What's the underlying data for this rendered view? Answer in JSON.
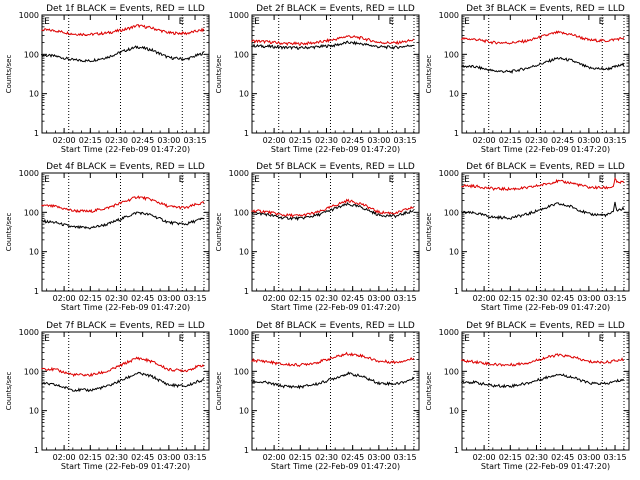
{
  "chart_data": [
    {
      "type": "line",
      "title": "Det 1f BLACK = Events, RED = LLD",
      "xlabel": "Start Time (22-Feb-09 01:47:20)",
      "ylabel": "Counts/sec",
      "yscale": "log",
      "ylim": [
        1,
        1000
      ],
      "xlim": [
        "01:47:20",
        "03:23:00"
      ],
      "x_ticks": [
        "02:00",
        "02:15",
        "02:30",
        "02:45",
        "03:00",
        "03:15"
      ],
      "y_ticks": [
        "1",
        "10",
        "100",
        "1000"
      ],
      "markers": [
        "E",
        "E"
      ],
      "series": [
        {
          "color": "#000000",
          "x": [
            "01:47",
            "01:55",
            "02:05",
            "02:15",
            "02:25",
            "02:35",
            "02:42",
            "02:50",
            "03:00",
            "03:10",
            "03:15",
            "03:20"
          ],
          "y": [
            95,
            90,
            72,
            68,
            85,
            125,
            155,
            130,
            82,
            75,
            90,
            108
          ]
        },
        {
          "color": "#dd0000",
          "x": [
            "01:47",
            "01:55",
            "02:05",
            "02:15",
            "02:25",
            "02:35",
            "02:42",
            "02:50",
            "03:00",
            "03:10",
            "03:15",
            "03:20"
          ],
          "y": [
            420,
            400,
            330,
            320,
            350,
            430,
            540,
            470,
            350,
            340,
            380,
            420
          ]
        }
      ]
    },
    {
      "type": "line",
      "title": "Det 2f BLACK = Events, RED = LLD",
      "xlabel": "Start Time (22-Feb-09 01:47:20)",
      "ylabel": "Counts/sec",
      "yscale": "log",
      "ylim": [
        1,
        1000
      ],
      "xlim": [
        "01:47:20",
        "03:23:00"
      ],
      "x_ticks": [
        "02:00",
        "02:15",
        "02:30",
        "02:45",
        "03:00",
        "03:15"
      ],
      "y_ticks": [
        "1",
        "10",
        "100",
        "1000"
      ],
      "markers": [
        "E",
        "E"
      ],
      "series": [
        {
          "color": "#000000",
          "x": [
            "01:47",
            "01:55",
            "02:05",
            "02:15",
            "02:25",
            "02:35",
            "02:42",
            "02:50",
            "03:00",
            "03:10",
            "03:15",
            "03:20"
          ],
          "y": [
            165,
            160,
            150,
            145,
            155,
            170,
            200,
            185,
            155,
            150,
            160,
            175
          ]
        },
        {
          "color": "#dd0000",
          "x": [
            "01:47",
            "01:55",
            "02:05",
            "02:15",
            "02:25",
            "02:35",
            "02:42",
            "02:50",
            "03:00",
            "03:10",
            "03:15",
            "03:20"
          ],
          "y": [
            220,
            210,
            190,
            185,
            200,
            240,
            290,
            260,
            200,
            195,
            210,
            230
          ]
        }
      ]
    },
    {
      "type": "line",
      "title": "Det 3f BLACK = Events, RED = LLD",
      "xlabel": "Start Time (22-Feb-09 01:47:20)",
      "ylabel": "Counts/sec",
      "yscale": "log",
      "ylim": [
        1,
        1000
      ],
      "xlim": [
        "01:47:20",
        "03:23:00"
      ],
      "x_ticks": [
        "02:00",
        "02:15",
        "02:30",
        "02:45",
        "03:00",
        "03:15"
      ],
      "y_ticks": [
        "1",
        "10",
        "100",
        "1000"
      ],
      "markers": [
        "E",
        "E"
      ],
      "series": [
        {
          "color": "#000000",
          "x": [
            "01:47",
            "01:55",
            "02:05",
            "02:15",
            "02:25",
            "02:35",
            "02:42",
            "02:50",
            "03:00",
            "03:10",
            "03:15",
            "03:20"
          ],
          "y": [
            50,
            48,
            38,
            36,
            45,
            62,
            80,
            70,
            45,
            42,
            48,
            55
          ]
        },
        {
          "color": "#dd0000",
          "x": [
            "01:47",
            "01:55",
            "02:05",
            "02:15",
            "02:25",
            "02:35",
            "02:42",
            "02:50",
            "03:00",
            "03:10",
            "03:15",
            "03:20"
          ],
          "y": [
            250,
            240,
            200,
            195,
            220,
            300,
            360,
            320,
            230,
            220,
            240,
            260
          ]
        }
      ]
    },
    {
      "type": "line",
      "title": "Det 4f BLACK = Events, RED = LLD",
      "xlabel": "Start Time (22-Feb-09 01:47:20)",
      "ylabel": "Counts/sec",
      "yscale": "log",
      "ylim": [
        1,
        1000
      ],
      "xlim": [
        "01:47:20",
        "03:23:00"
      ],
      "x_ticks": [
        "02:00",
        "02:15",
        "02:30",
        "02:45",
        "03:00",
        "03:15"
      ],
      "y_ticks": [
        "1",
        "10",
        "100",
        "1000"
      ],
      "markers": [
        "E",
        "E"
      ],
      "series": [
        {
          "color": "#000000",
          "x": [
            "01:47",
            "01:55",
            "02:05",
            "02:15",
            "02:25",
            "02:35",
            "02:42",
            "02:50",
            "03:00",
            "03:10",
            "03:15",
            "03:20"
          ],
          "y": [
            60,
            55,
            42,
            40,
            50,
            75,
            100,
            85,
            55,
            50,
            60,
            70
          ]
        },
        {
          "color": "#dd0000",
          "x": [
            "01:47",
            "01:55",
            "02:05",
            "02:15",
            "02:25",
            "02:35",
            "02:42",
            "02:50",
            "03:00",
            "03:10",
            "03:15",
            "03:20"
          ],
          "y": [
            150,
            140,
            110,
            105,
            130,
            190,
            250,
            210,
            140,
            130,
            155,
            175
          ]
        }
      ]
    },
    {
      "type": "line",
      "title": "Det 5f BLACK = Events, RED = LLD",
      "xlabel": "Start Time (22-Feb-09 01:47:20)",
      "ylabel": "Counts/sec",
      "yscale": "log",
      "ylim": [
        1,
        1000
      ],
      "xlim": [
        "01:47:20",
        "03:23:00"
      ],
      "x_ticks": [
        "02:00",
        "02:15",
        "02:30",
        "02:45",
        "03:00",
        "03:15"
      ],
      "y_ticks": [
        "1",
        "10",
        "100",
        "1000"
      ],
      "markers": [
        "E",
        "E"
      ],
      "series": [
        {
          "color": "#000000",
          "x": [
            "01:47",
            "01:55",
            "02:05",
            "02:15",
            "02:25",
            "02:35",
            "02:42",
            "02:50",
            "03:00",
            "03:10",
            "03:15",
            "03:20"
          ],
          "y": [
            95,
            90,
            72,
            70,
            85,
            125,
            160,
            135,
            85,
            80,
            95,
            110
          ]
        },
        {
          "color": "#dd0000",
          "x": [
            "01:47",
            "01:55",
            "02:05",
            "02:15",
            "02:25",
            "02:35",
            "02:42",
            "02:50",
            "03:00",
            "03:10",
            "03:15",
            "03:20"
          ],
          "y": [
            110,
            105,
            85,
            82,
            100,
            150,
            200,
            165,
            100,
            95,
            115,
            135
          ]
        }
      ]
    },
    {
      "type": "line",
      "title": "Det 6f BLACK = Events, RED = LLD",
      "xlabel": "Start Time (22-Feb-09 01:47:20)",
      "ylabel": "Counts/sec",
      "yscale": "log",
      "ylim": [
        1,
        1000
      ],
      "xlim": [
        "01:47:20",
        "03:23:00"
      ],
      "x_ticks": [
        "02:00",
        "02:15",
        "02:30",
        "02:45",
        "03:00",
        "03:15"
      ],
      "y_ticks": [
        "1",
        "10",
        "100",
        "1000"
      ],
      "markers": [
        "E",
        "E"
      ],
      "series": [
        {
          "color": "#000000",
          "x": [
            "01:47",
            "01:55",
            "02:05",
            "02:15",
            "02:25",
            "02:35",
            "02:42",
            "02:50",
            "03:00",
            "03:10",
            "03:14",
            "03:15",
            "03:16",
            "03:20"
          ],
          "y": [
            100,
            95,
            75,
            72,
            90,
            130,
            165,
            140,
            90,
            85,
            100,
            190,
            110,
            125
          ]
        },
        {
          "color": "#dd0000",
          "x": [
            "01:47",
            "01:55",
            "02:05",
            "02:15",
            "02:25",
            "02:35",
            "02:42",
            "02:50",
            "03:00",
            "03:10",
            "03:14",
            "03:15",
            "03:16",
            "03:20"
          ],
          "y": [
            480,
            460,
            400,
            390,
            420,
            520,
            620,
            560,
            430,
            420,
            450,
            750,
            560,
            590
          ]
        }
      ]
    },
    {
      "type": "line",
      "title": "Det 7f BLACK = Events, RED = LLD",
      "xlabel": "Start Time (22-Feb-09 01:47:20)",
      "ylabel": "Counts/sec",
      "yscale": "log",
      "ylim": [
        1,
        1000
      ],
      "xlim": [
        "01:47:20",
        "03:23:00"
      ],
      "x_ticks": [
        "02:00",
        "02:15",
        "02:30",
        "02:45",
        "03:00",
        "03:15"
      ],
      "y_ticks": [
        "1",
        "10",
        "100",
        "1000"
      ],
      "markers": [
        "E",
        "E"
      ],
      "series": [
        {
          "color": "#000000",
          "x": [
            "01:47",
            "01:55",
            "02:05",
            "02:15",
            "02:25",
            "02:35",
            "02:42",
            "02:50",
            "03:00",
            "03:10",
            "03:15",
            "03:20"
          ],
          "y": [
            50,
            45,
            34,
            33,
            42,
            65,
            90,
            75,
            45,
            42,
            52,
            62
          ]
        },
        {
          "color": "#dd0000",
          "x": [
            "01:47",
            "01:55",
            "02:05",
            "02:15",
            "02:25",
            "02:35",
            "02:42",
            "02:50",
            "03:00",
            "03:10",
            "03:15",
            "03:20"
          ],
          "y": [
            120,
            110,
            82,
            80,
            100,
            160,
            220,
            180,
            110,
            105,
            125,
            145
          ]
        }
      ]
    },
    {
      "type": "line",
      "title": "Det 8f BLACK = Events, RED = LLD",
      "xlabel": "Start Time (22-Feb-09 01:47:20)",
      "ylabel": "Counts/sec",
      "yscale": "log",
      "ylim": [
        1,
        1000
      ],
      "xlim": [
        "01:47:20",
        "03:23:00"
      ],
      "x_ticks": [
        "02:00",
        "02:15",
        "02:30",
        "02:45",
        "03:00",
        "03:15"
      ],
      "y_ticks": [
        "1",
        "10",
        "100",
        "1000"
      ],
      "markers": [
        "E",
        "E"
      ],
      "series": [
        {
          "color": "#000000",
          "x": [
            "01:47",
            "01:55",
            "02:05",
            "02:15",
            "02:25",
            "02:35",
            "02:42",
            "02:50",
            "03:00",
            "03:10",
            "03:15",
            "03:20"
          ],
          "y": [
            55,
            52,
            42,
            40,
            48,
            68,
            88,
            75,
            50,
            48,
            55,
            65
          ]
        },
        {
          "color": "#dd0000",
          "x": [
            "01:47",
            "01:55",
            "02:05",
            "02:15",
            "02:25",
            "02:35",
            "02:42",
            "02:50",
            "03:00",
            "03:10",
            "03:15",
            "03:20"
          ],
          "y": [
            190,
            180,
            150,
            145,
            170,
            230,
            280,
            250,
            180,
            170,
            190,
            210
          ]
        }
      ]
    },
    {
      "type": "line",
      "title": "Det 9f BLACK = Events, RED = LLD",
      "xlabel": "Start Time (22-Feb-09 01:47:20)",
      "ylabel": "Counts/sec",
      "yscale": "log",
      "ylim": [
        1,
        1000
      ],
      "xlim": [
        "01:47:20",
        "03:23:00"
      ],
      "x_ticks": [
        "02:00",
        "02:15",
        "02:30",
        "02:45",
        "03:00",
        "03:15"
      ],
      "y_ticks": [
        "1",
        "10",
        "100",
        "1000"
      ],
      "markers": [
        "E",
        "E"
      ],
      "series": [
        {
          "color": "#000000",
          "x": [
            "01:47",
            "01:55",
            "02:05",
            "02:15",
            "02:25",
            "02:35",
            "02:42",
            "02:50",
            "03:00",
            "03:10",
            "03:15",
            "03:20"
          ],
          "y": [
            55,
            52,
            43,
            42,
            50,
            68,
            85,
            72,
            50,
            48,
            55,
            62
          ]
        },
        {
          "color": "#dd0000",
          "x": [
            "01:47",
            "01:55",
            "02:05",
            "02:15",
            "02:25",
            "02:35",
            "02:42",
            "02:50",
            "03:00",
            "03:10",
            "03:15",
            "03:20"
          ],
          "y": [
            185,
            175,
            150,
            145,
            165,
            220,
            260,
            235,
            175,
            170,
            185,
            200
          ]
        }
      ]
    }
  ]
}
